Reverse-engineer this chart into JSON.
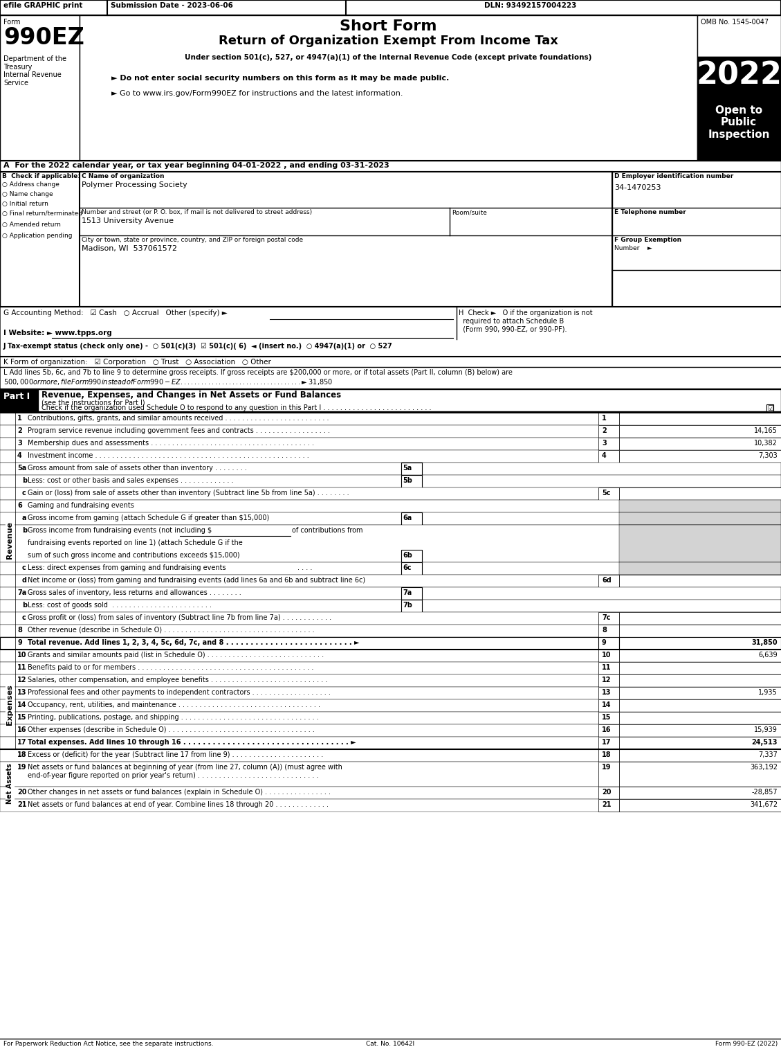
{
  "title_short": "Short Form",
  "title_long": "Return of Organization Exempt From Income Tax",
  "subtitle": "Under section 501(c), 527, or 4947(a)(1) of the Internal Revenue Code (except private foundations)",
  "form_number": "990EZ",
  "year": "2022",
  "omb": "OMB No. 1545-0047",
  "efile_text": "efile GRAPHIC print",
  "submission_date": "Submission Date - 2023-06-06",
  "dln": "DLN: 93492157004223",
  "dept_lines": [
    "Department of the",
    "Treasury",
    "Internal Revenue",
    "Service"
  ],
  "bullet1": "► Do not enter social security numbers on this form as it may be made public.",
  "bullet2": "► Go to www.irs.gov/Form990EZ for instructions and the latest information.",
  "open_to_public": "Open to\nPublic\nInspection",
  "line_A": "A  For the 2022 calendar year, or tax year beginning 04-01-2022 , and ending 03-31-2023",
  "line_B_label": "B  Check if applicable:",
  "checkboxes_B": [
    "Address change",
    "Name change",
    "Initial return",
    "Final return/terminated",
    "Amended return",
    "Application pending"
  ],
  "line_C_label": "C Name of organization",
  "org_name": "Polymer Processing Society",
  "street_label": "Number and street (or P. O. box, if mail is not delivered to street address)",
  "room_label": "Room/suite",
  "street_value": "1513 University Avenue",
  "city_label": "City or town, state or province, country, and ZIP or foreign postal code",
  "city_value": "Madison, WI  537061572",
  "line_D_label": "D Employer identification number",
  "ein": "34-1470253",
  "line_E_label": "E Telephone number",
  "line_F_label": "F Group Exemption",
  "line_F2": "Number    ►",
  "line_G": "G Accounting Method:   ☑ Cash   ○ Accrual   Other (specify) ►",
  "line_H": "H  Check ►   O if the organization is not\n  required to attach Schedule B\n  (Form 990, 990-EZ, or 990-PF).",
  "line_I": "I Website: ► www.tpps.org",
  "line_J": "J Tax-exempt status (check only one) -  ○ 501(c)(3)  ☑ 501(c)( 6)  ◄ (insert no.)  ○ 4947(a)(1) or  ○ 527",
  "line_K": "K Form of organization:   ☑ Corporation   ○ Trust   ○ Association   ○ Other",
  "line_L": "L Add lines 5b, 6c, and 7b to line 9 to determine gross receipts. If gross receipts are $200,000 or more, or if total assets (Part II, column (B) below) are\n$500,000 or more, file Form 990 instead of Form 990-EZ . . . . . . . . . . . . . . . . . . . . . . . . . . . . . . . . . . . ► $ 31,850",
  "part1_title": "Revenue, Expenses, and Changes in Net Assets or Fund Balances",
  "part1_subtitle": "(see the instructions for Part I)",
  "part1_check": "Check if the organization used Schedule O to respond to any question in this Part I . . . . . . . . . . . . . . . . . . . . . . . . . .",
  "revenue_lines": [
    {
      "num": "1",
      "text": "Contributions, gifts, grants, and similar amounts received . . . . . . . . . . . . . . . . . . . . . . . . .",
      "line": "1",
      "value": ""
    },
    {
      "num": "2",
      "text": "Program service revenue including government fees and contracts . . . . . . . . . . . . . . . . . .",
      "line": "2",
      "value": "14,165"
    },
    {
      "num": "3",
      "text": "Membership dues and assessments . . . . . . . . . . . . . . . . . . . . . . . . . . . . . . . . . . . . . . .",
      "line": "3",
      "value": "10,382"
    },
    {
      "num": "4",
      "text": "Investment income . . . . . . . . . . . . . . . . . . . . . . . . . . . . . . . . . . . . . . . . . . . . . . . . . . .",
      "line": "4",
      "value": "7,303"
    }
  ],
  "line_5a_text": "Gross amount from sale of assets other than inventory . . . . . . . .",
  "line_5b_text": "Less: cost or other basis and sales expenses . . . . . . . . . . . . .",
  "line_5c_text": "Gain or (loss) from sale of assets other than inventory (Subtract line 5b from line 5a) . . . . . . . .",
  "line_6_text": "Gaming and fundraising events",
  "line_6a_text": "Gross income from gaming (attach Schedule G if greater than $15,000)",
  "line_6b_text": "Gross income from fundraising events (not including $",
  "line_6b2": "of contributions from",
  "line_6b3": "fundraising events reported on line 1) (attach Schedule G if the",
  "line_6b4": "sum of such gross income and contributions exceeds $15,000)",
  "line_6c_text": "Less: direct expenses from gaming and fundraising events",
  "line_6d_text": "Net income or (loss) from gaming and fundraising events (add lines 6a and 6b and subtract line 6c)",
  "line_7a_text": "Gross sales of inventory, less returns and allowances . . . . . . . .",
  "line_7b_text": "Less: cost of goods sold  . . . . . . . . . . . . . . . . . . . . . . . .",
  "line_7c_text": "Gross profit or (loss) from sales of inventory (Subtract line 7b from line 7a) . . . . . . . . . . . .",
  "line_8_text": "Other revenue (describe in Schedule O) . . . . . . . . . . . . . . . . . . . . . . . . . . . . . . . . . . . .",
  "line_9_text": "Total revenue. Add lines 1, 2, 3, 4, 5c, 6d, 7c, and 8 . . . . . . . . . . . . . . . . . . . . . . . . . . ►",
  "line_9_value": "31,850",
  "expense_lines": [
    {
      "num": "10",
      "text": "Grants and similar amounts paid (list in Schedule O) . . . . . . . . . . . . . . . . . . . . . . . . . . . .",
      "line": "10",
      "value": "6,639"
    },
    {
      "num": "11",
      "text": "Benefits paid to or for members . . . . . . . . . . . . . . . . . . . . . . . . . . . . . . . . . . . . . . . . . .",
      "line": "11",
      "value": ""
    },
    {
      "num": "12",
      "text": "Salaries, other compensation, and employee benefits . . . . . . . . . . . . . . . . . . . . . . . . . . . .",
      "line": "12",
      "value": ""
    },
    {
      "num": "13",
      "text": "Professional fees and other payments to independent contractors . . . . . . . . . . . . . . . . . . .",
      "line": "13",
      "value": "1,935"
    },
    {
      "num": "14",
      "text": "Occupancy, rent, utilities, and maintenance . . . . . . . . . . . . . . . . . . . . . . . . . . . . . . . . . .",
      "line": "14",
      "value": ""
    },
    {
      "num": "15",
      "text": "Printing, publications, postage, and shipping . . . . . . . . . . . . . . . . . . . . . . . . . . . . . . . . .",
      "line": "15",
      "value": ""
    },
    {
      "num": "16",
      "text": "Other expenses (describe in Schedule O) . . . . . . . . . . . . . . . . . . . . . . . . . . . . . . . . . . .",
      "line": "16",
      "value": "15,939"
    },
    {
      "num": "17",
      "text": "Total expenses. Add lines 10 through 16 . . . . . . . . . . . . . . . . . . . . . . . . . . . . . . . . . . ►",
      "line": "17",
      "value": "24,513"
    }
  ],
  "netassets_lines": [
    {
      "num": "18",
      "text": "Excess or (deficit) for the year (Subtract line 17 from line 9) . . . . . . . . . . . . . . . . . . . . . .",
      "line": "18",
      "value": "7,337"
    },
    {
      "num": "19",
      "text": "Net assets or fund balances at beginning of year (from line 27, column (A)) (must agree with\nend-of-year figure reported on prior year's return) . . . . . . . . . . . . . . . . . . . . . . . . . . . . .",
      "line": "19",
      "value": "363,192"
    },
    {
      "num": "20",
      "text": "Other changes in net assets or fund balances (explain in Schedule O) . . . . . . . . . . . . . . . .",
      "line": "20",
      "value": "-28,857"
    },
    {
      "num": "21",
      "text": "Net assets or fund balances at end of year. Combine lines 18 through 20 . . . . . . . . . . . . .",
      "line": "21",
      "value": "341,672"
    }
  ],
  "footer_left": "For Paperwork Reduction Act Notice, see the separate instructions.",
  "footer_center": "Cat. No. 10642I",
  "footer_right": "Form 990-EZ (2022)",
  "bg_color": "#ffffff",
  "header_bg": "#000000",
  "part_header_bg": "#000000",
  "gray_col": "#c0c0c0",
  "light_gray": "#d3d3d3"
}
